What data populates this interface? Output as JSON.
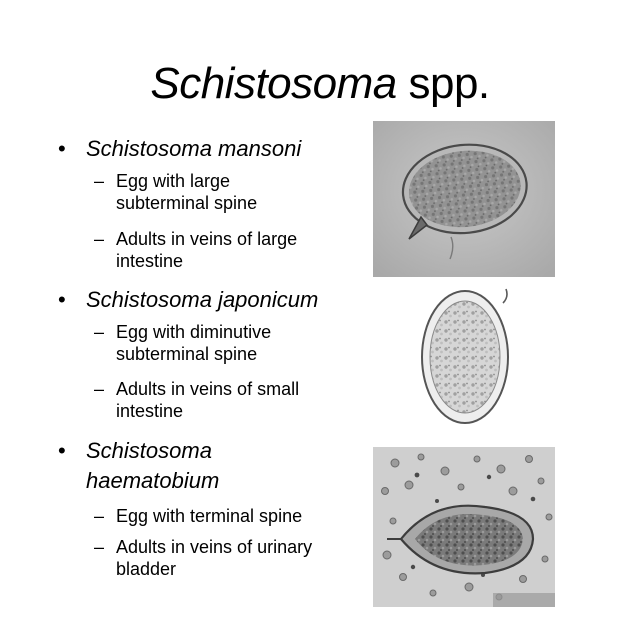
{
  "title": {
    "genus": "Schistosoma",
    "suffix": " spp."
  },
  "sections": [
    {
      "bullet_symbol": "•",
      "heading": "Schistosoma mansoni",
      "items": [
        {
          "dash": "–",
          "lines": [
            "Egg with large",
            "subterminal spine"
          ]
        },
        {
          "dash": "–",
          "lines": [
            "Adults in veins of large",
            "intestine"
          ]
        }
      ]
    },
    {
      "bullet_symbol": "•",
      "heading": "Schistosoma japonicum",
      "items": [
        {
          "dash": "–",
          "lines": [
            "Egg with diminutive",
            "subterminal spine"
          ]
        },
        {
          "dash": "–",
          "lines": [
            "Adults in veins of small",
            "intestine"
          ]
        }
      ]
    },
    {
      "bullet_symbol": "•",
      "heading_lines": [
        "Schistosoma",
        "haematobium"
      ],
      "items": [
        {
          "dash": "–",
          "lines": [
            "Egg with terminal spine"
          ]
        },
        {
          "dash": "–",
          "lines": [
            "Adults in veins of urinary",
            "bladder"
          ]
        }
      ]
    }
  ]
}
